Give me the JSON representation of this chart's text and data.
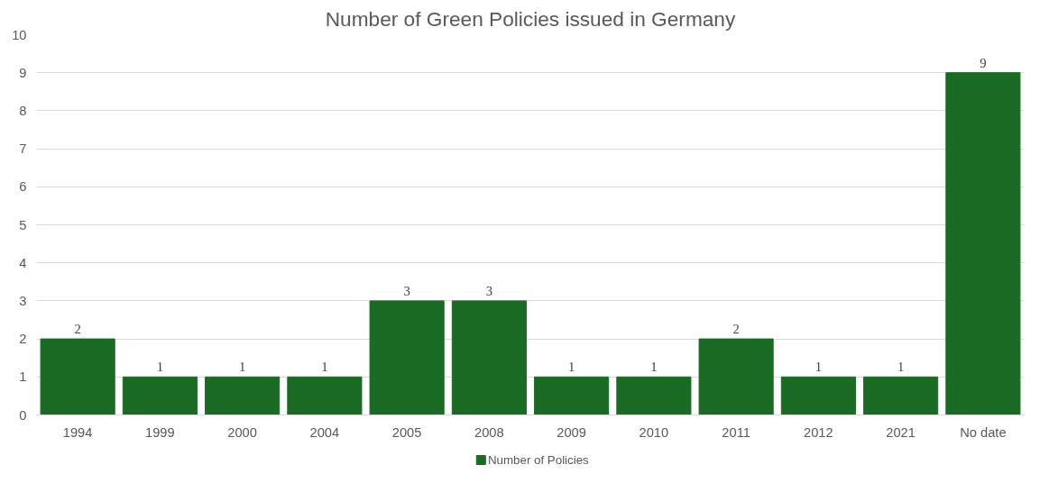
{
  "chart_data": {
    "type": "bar",
    "title": "Number of Green Policies issued in Germany",
    "categories": [
      "1994",
      "1999",
      "2000",
      "2004",
      "2005",
      "2008",
      "2009",
      "2010",
      "2011",
      "2012",
      "2021",
      "No date"
    ],
    "series": [
      {
        "name": "Number of Policies",
        "color": "#1a6b24",
        "values": [
          2,
          1,
          1,
          1,
          3,
          3,
          1,
          1,
          2,
          1,
          1,
          9
        ]
      }
    ],
    "ylim": [
      0,
      10
    ],
    "yticks": [
      0,
      1,
      2,
      3,
      4,
      5,
      6,
      7,
      8,
      9,
      10
    ],
    "grid": "y",
    "legend": "bottom",
    "data_labels": true
  }
}
